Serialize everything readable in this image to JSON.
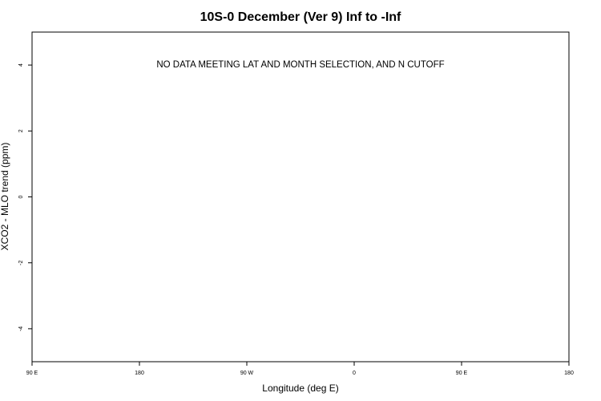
{
  "chart_data": {
    "type": "scatter",
    "title": "10S-0 December (Ver 9)   Inf to -Inf",
    "xlabel": "Longitude (deg E)",
    "ylabel": "XCO2 - MLO trend (ppm)",
    "x_ticks": [
      {
        "value": 90,
        "label": "90 E"
      },
      {
        "value": 180,
        "label": "180"
      },
      {
        "value": 270,
        "label": "90 W"
      },
      {
        "value": 360,
        "label": "0"
      },
      {
        "value": 450,
        "label": "90 E"
      },
      {
        "value": 540,
        "label": "180"
      }
    ],
    "y_ticks": [
      {
        "value": -4,
        "label": "-4"
      },
      {
        "value": -2,
        "label": "-2"
      },
      {
        "value": 0,
        "label": "0"
      },
      {
        "value": 2,
        "label": "2"
      },
      {
        "value": 4,
        "label": "4"
      }
    ],
    "xlim": [
      90,
      540
    ],
    "ylim": [
      -5,
      5
    ],
    "series": [
      {
        "x": [],
        "y": []
      }
    ],
    "annotation": "NO DATA MEETING LAT AND MONTH SELECTION, AND N CUTOFF",
    "grid": false,
    "legend": "none"
  },
  "colors": {
    "axis": "#000000",
    "text": "#000000",
    "background": "#ffffff"
  }
}
